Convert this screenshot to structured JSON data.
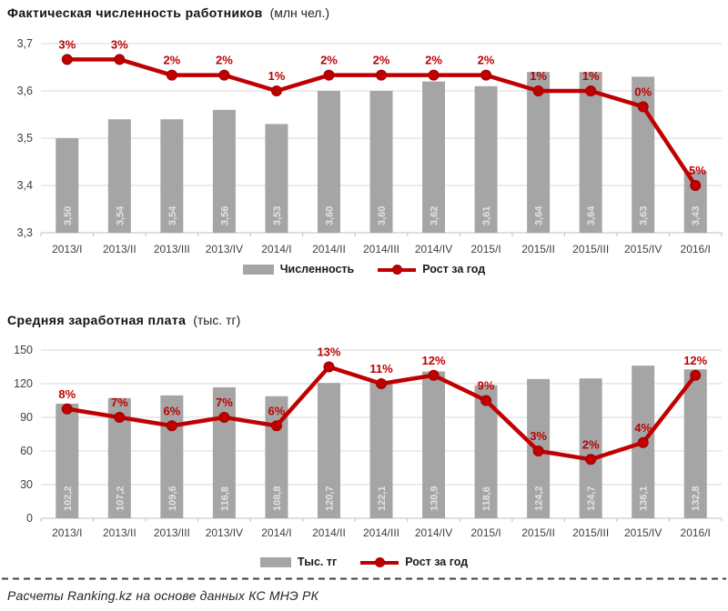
{
  "page": {
    "footer_source": "Расчеты Ranking.kz на основе данных КС МНЭ РК"
  },
  "colors": {
    "bar": "#a5a5a5",
    "bar_label": "#e3e3e3",
    "line": "#c00000",
    "marker_edge": "#9b0000",
    "percent_label": "#bf0000",
    "gridline": "#d9d9d9",
    "axis_line": "#bfbfbf",
    "tick_label": "#3f3f3f"
  },
  "chart_data": [
    {
      "type": "bar+line",
      "title": "Фактическая численность работников",
      "units": "(млн чел.)",
      "categories": [
        "2013/I",
        "2013/II",
        "2013/III",
        "2013/IV",
        "2014/I",
        "2014/II",
        "2014/III",
        "2014/IV",
        "2015/I",
        "2015/II",
        "2015/III",
        "2015/IV",
        "2016/I"
      ],
      "ylim": [
        3.3,
        3.7
      ],
      "y_ticks": [
        3.7,
        3.6,
        3.5,
        3.4,
        3.3
      ],
      "y_tick_labels": [
        "3,7",
        "3,6",
        "3,5",
        "3,4",
        "3,3"
      ],
      "secondary_ylim": [
        -8,
        4
      ],
      "grid": true,
      "legend_position": "bottom",
      "series": [
        {
          "name": "Численность",
          "type": "bar",
          "values": [
            3.5,
            3.54,
            3.54,
            3.56,
            3.53,
            3.6,
            3.6,
            3.62,
            3.61,
            3.64,
            3.64,
            3.63,
            3.43
          ],
          "labels": [
            "3,50",
            "3,54",
            "3,54",
            "3,56",
            "3,53",
            "3,60",
            "3,60",
            "3,62",
            "3,61",
            "3,64",
            "3,64",
            "3,63",
            "3,43"
          ]
        },
        {
          "name": "Рост за год",
          "type": "line",
          "values": [
            3,
            3,
            2,
            2,
            1,
            2,
            2,
            2,
            2,
            1,
            1,
            0,
            -5
          ],
          "labels": [
            "3%",
            "3%",
            "2%",
            "2%",
            "1%",
            "2%",
            "2%",
            "2%",
            "2%",
            "1%",
            "1%",
            "0%",
            "-5%"
          ]
        }
      ]
    },
    {
      "type": "bar+line",
      "title": "Средняя заработная плата",
      "units": "(тыс. тг)",
      "categories": [
        "2013/I",
        "2013/II",
        "2013/III",
        "2013/IV",
        "2014/I",
        "2014/II",
        "2014/III",
        "2014/IV",
        "2015/I",
        "2015/II",
        "2015/III",
        "2015/IV",
        "2016/I"
      ],
      "ylim": [
        0,
        150
      ],
      "y_ticks": [
        150,
        120,
        90,
        60,
        30,
        0
      ],
      "y_tick_labels": [
        "150",
        "120",
        "90",
        "60",
        "30",
        "0"
      ],
      "secondary_ylim": [
        -5,
        15
      ],
      "grid": true,
      "legend_position": "bottom",
      "series": [
        {
          "name": "Тыс. тг",
          "type": "bar",
          "values": [
            102.2,
            107.2,
            109.6,
            116.8,
            108.8,
            120.7,
            122.1,
            130.9,
            118.6,
            124.2,
            124.7,
            136.1,
            132.8
          ],
          "labels": [
            "102,2",
            "107,2",
            "109,6",
            "116,8",
            "108,8",
            "120,7",
            "122,1",
            "130,9",
            "118,6",
            "124,2",
            "124,7",
            "136,1",
            "132,8"
          ]
        },
        {
          "name": "Рост за год",
          "type": "line",
          "values": [
            8,
            7,
            6,
            7,
            6,
            13,
            11,
            12,
            9,
            3,
            2,
            4,
            12
          ],
          "labels": [
            "8%",
            "7%",
            "6%",
            "7%",
            "6%",
            "13%",
            "11%",
            "12%",
            "9%",
            "3%",
            "2%",
            "4%",
            "12%"
          ]
        }
      ]
    }
  ]
}
